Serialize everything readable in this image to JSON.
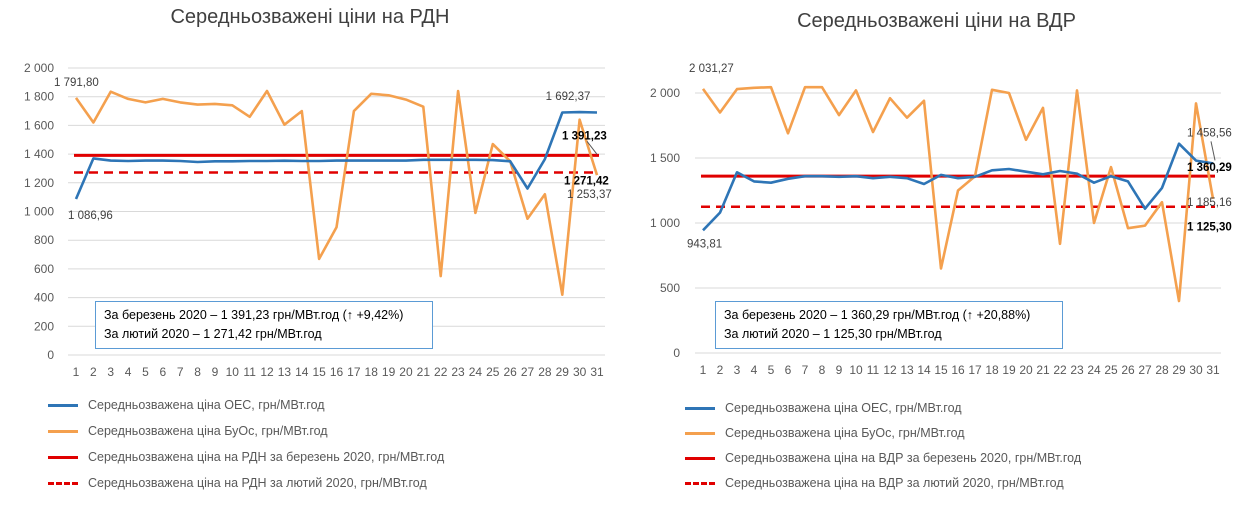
{
  "charts": [
    {
      "id": "left",
      "title": "Середньозважені ціни на РДН",
      "note_lines": [
        "За березень 2020 – 1 391,23 грн/МВт.год (↑ +9,42%)",
        "За лютий 2020 – 1 271,42 грн/МВт.год"
      ],
      "legend": [
        "Середньозважена ціна ОЕС, грн/МВт.год",
        "Середньозважена ціна БуОс, грн/МВт.год",
        "Середньозважена ціна на РДН за березень 2020, грн/МВт.год",
        "Середньозважена ціна на РДН за лютий 2020, грн/МВт.год"
      ]
    },
    {
      "id": "right",
      "title": "Середньозважені ціни на ВДР",
      "note_lines": [
        "За березень 2020 – 1 360,29 грн/МВт.год (↑ +20,88%)",
        "За лютий 2020 – 1 125,30 грн/МВт.год"
      ],
      "legend": [
        "Середньозважена ціна ОЕС, грн/МВт.год",
        "Середньозважена ціна БуОс, грн/МВт.год",
        "Середньозважена ціна на ВДР за березень 2020, грн/МВт.год",
        "Середньозважена ціна на ВДР за лютий 2020, грн/МВт.год"
      ]
    }
  ],
  "colors": {
    "oes": "#2e75b6",
    "buos": "#f4a04e",
    "march": "#e00000",
    "feb": "#e00000",
    "note_border": "#5b9bd5"
  },
  "chart_data": [
    {
      "type": "line",
      "title": "Середньозважені ціни на РДН",
      "x": [
        1,
        2,
        3,
        4,
        5,
        6,
        7,
        8,
        9,
        10,
        11,
        12,
        13,
        14,
        15,
        16,
        17,
        18,
        19,
        20,
        21,
        22,
        23,
        24,
        25,
        26,
        27,
        28,
        29,
        30,
        31
      ],
      "ylim": [
        0,
        2000
      ],
      "yticks": [
        0,
        200,
        400,
        600,
        800,
        1000,
        1200,
        1400,
        1600,
        1800,
        2000
      ],
      "ytick_labels": [
        "0",
        "200",
        "400",
        "600",
        "800",
        "1 000",
        "1 200",
        "1 400",
        "1 600",
        "1 800",
        "2 000"
      ],
      "xlabel": "",
      "ylabel": "",
      "grid": true,
      "legend_position": "bottom",
      "series": [
        {
          "name": "Середньозважена ціна ОЕС, грн/МВт.год",
          "style": "solid",
          "values": [
            1086.96,
            1370,
            1355,
            1352,
            1355,
            1355,
            1352,
            1345,
            1350,
            1350,
            1352,
            1352,
            1354,
            1352,
            1352,
            1355,
            1355,
            1355,
            1355,
            1355,
            1360,
            1360,
            1360,
            1360,
            1358,
            1350,
            1160,
            1365,
            1690,
            1692.37,
            1690
          ]
        },
        {
          "name": "Середньозважена ціна БуОс, грн/МВт.год",
          "style": "solid",
          "values": [
            1791.8,
            1620,
            1835,
            1785,
            1760,
            1785,
            1760,
            1745,
            1750,
            1740,
            1660,
            1840,
            1605,
            1700,
            670,
            890,
            1700,
            1820,
            1810,
            1780,
            1730,
            550,
            1840,
            990,
            1470,
            1350,
            950,
            1120,
            420,
            1640,
            1253.37
          ]
        },
        {
          "name": "Середньозважена ціна на РДН за березень 2020, грн/МВт.год",
          "style": "solid",
          "constant": 1391.23
        },
        {
          "name": "Середньозважена ціна на РДН за лютий 2020, грн/МВт.год",
          "style": "dashed",
          "constant": 1271.42
        }
      ],
      "data_labels": [
        {
          "text": "1 791,80"
        },
        {
          "text": "1 086,96"
        },
        {
          "text": "1 692,37"
        },
        {
          "text": "1 391,23"
        },
        {
          "text": "1 271,42"
        },
        {
          "text": "1 253,37"
        }
      ]
    },
    {
      "type": "line",
      "title": "Середньозважені ціни на ВДР",
      "x": [
        1,
        2,
        3,
        4,
        5,
        6,
        7,
        8,
        9,
        10,
        11,
        12,
        13,
        14,
        15,
        16,
        17,
        18,
        19,
        20,
        21,
        22,
        23,
        24,
        25,
        26,
        27,
        28,
        29,
        30,
        31
      ],
      "ylim": [
        0,
        2000
      ],
      "yticks": [
        0,
        500,
        1000,
        1500,
        2000
      ],
      "ytick_labels": [
        "0",
        "500",
        "1 000",
        "1 500",
        "2 000"
      ],
      "xlabel": "",
      "ylabel": "",
      "grid": true,
      "legend_position": "bottom",
      "series": [
        {
          "name": "Середньозважена ціна ОЕС, грн/МВт.год",
          "style": "solid",
          "values": [
            943.81,
            1080,
            1390,
            1320,
            1310,
            1340,
            1360,
            1360,
            1355,
            1360,
            1345,
            1355,
            1345,
            1300,
            1370,
            1345,
            1355,
            1405,
            1415,
            1395,
            1375,
            1400,
            1380,
            1310,
            1360,
            1320,
            1110,
            1270,
            1610,
            1480,
            1458.56
          ]
        },
        {
          "name": "Середньозважена ціна БуОс, грн/МВт.год",
          "style": "solid",
          "values": [
            2031.27,
            1850,
            2030,
            2040,
            2045,
            1690,
            2045,
            2045,
            1830,
            2020,
            1700,
            1960,
            1810,
            1940,
            650,
            1250,
            1360,
            2025,
            2000,
            1640,
            1885,
            840,
            2020,
            1000,
            1430,
            960,
            980,
            1160,
            400,
            1920,
            1185.16
          ]
        },
        {
          "name": "Середньозважена ціна на ВДР за березень 2020, грн/МВт.год",
          "style": "solid",
          "constant": 1360.29
        },
        {
          "name": "Середньозважена ціна на ВДР за лютий 2020, грн/МВт.год",
          "style": "dashed",
          "constant": 1125.3
        }
      ],
      "data_labels": [
        {
          "text": "2 031,27"
        },
        {
          "text": "943,81"
        },
        {
          "text": "1 458,56"
        },
        {
          "text": "1 360,29"
        },
        {
          "text": "1 185,16"
        },
        {
          "text": "1 125,30"
        }
      ]
    }
  ]
}
